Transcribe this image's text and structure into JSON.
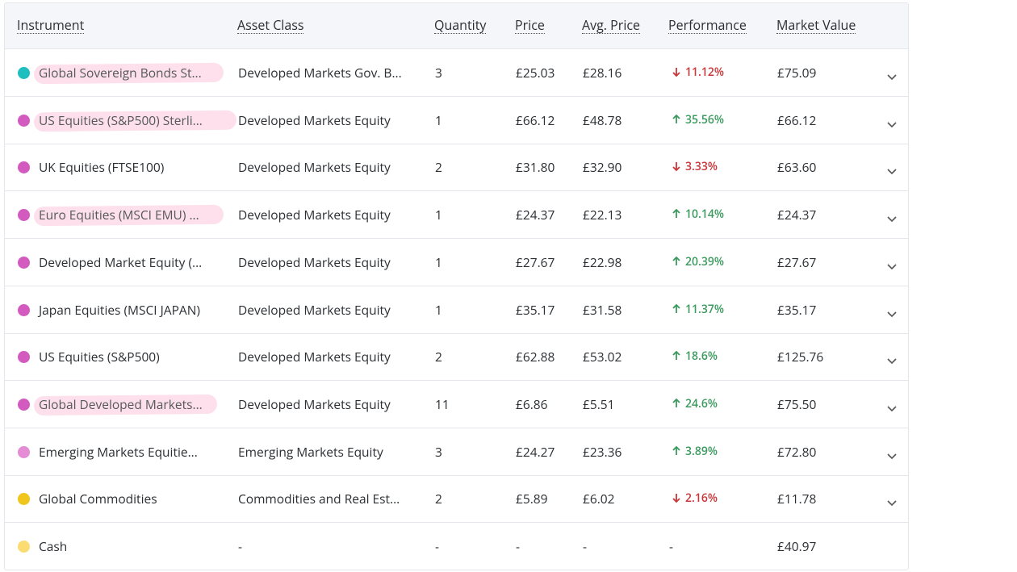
{
  "table": {
    "columns": [
      "Instrument",
      "Asset Class",
      "Quantity",
      "Price",
      "Avg. Price",
      "Performance",
      "Market Value"
    ],
    "rows": [
      {
        "instrument": "Global Sovereign Bonds St...",
        "asset_class": "Developed Markets Gov. B...",
        "quantity": "3",
        "price": "£25.03",
        "avg_price": "£28.16",
        "performance": "11.12%",
        "trend": "down",
        "market_value": "£75.09",
        "color": "#1fbfbf",
        "highlight": true
      },
      {
        "instrument": "US Equities (S&P500) Sterli...",
        "asset_class": "Developed Markets Equity",
        "quantity": "1",
        "price": "£66.12",
        "avg_price": "£48.78",
        "performance": "35.56%",
        "trend": "up",
        "market_value": "£66.12",
        "color": "#d35bbf",
        "highlight": true
      },
      {
        "instrument": "UK Equities (FTSE100)",
        "asset_class": "Developed Markets Equity",
        "quantity": "2",
        "price": "£31.80",
        "avg_price": "£32.90",
        "performance": "3.33%",
        "trend": "down",
        "market_value": "£63.60",
        "color": "#d35bbf",
        "highlight": false
      },
      {
        "instrument": "Euro Equities (MSCI EMU) ...",
        "asset_class": "Developed Markets Equity",
        "quantity": "1",
        "price": "£24.37",
        "avg_price": "£22.13",
        "performance": "10.14%",
        "trend": "up",
        "market_value": "£24.37",
        "color": "#d35bbf",
        "highlight": true
      },
      {
        "instrument": "Developed Market Equity (...",
        "asset_class": "Developed Markets Equity",
        "quantity": "1",
        "price": "£27.67",
        "avg_price": "£22.98",
        "performance": "20.39%",
        "trend": "up",
        "market_value": "£27.67",
        "color": "#d35bbf",
        "highlight": false
      },
      {
        "instrument": "Japan Equities (MSCI JAPAN)",
        "asset_class": "Developed Markets Equity",
        "quantity": "1",
        "price": "£35.17",
        "avg_price": "£31.58",
        "performance": "11.37%",
        "trend": "up",
        "market_value": "£35.17",
        "color": "#d35bbf",
        "highlight": false
      },
      {
        "instrument": "US Equities (S&P500)",
        "asset_class": "Developed Markets Equity",
        "quantity": "2",
        "price": "£62.88",
        "avg_price": "£53.02",
        "performance": "18.6%",
        "trend": "up",
        "market_value": "£125.76",
        "color": "#d35bbf",
        "highlight": false
      },
      {
        "instrument": "Global Developed Markets...",
        "asset_class": "Developed Markets Equity",
        "quantity": "11",
        "price": "£6.86",
        "avg_price": "£5.51",
        "performance": "24.6%",
        "trend": "up",
        "market_value": "£75.50",
        "color": "#d35bbf",
        "highlight": true
      },
      {
        "instrument": "Emerging Markets Equitie...",
        "asset_class": "Emerging Markets Equity",
        "quantity": "3",
        "price": "£24.27",
        "avg_price": "£23.36",
        "performance": "3.89%",
        "trend": "up",
        "market_value": "£72.80",
        "color": "#e48cd4",
        "highlight": false
      },
      {
        "instrument": "Global Commodities",
        "asset_class": "Commodities and Real Est...",
        "quantity": "2",
        "price": "£5.89",
        "avg_price": "£6.02",
        "performance": "2.16%",
        "trend": "down",
        "market_value": "£11.78",
        "color": "#f0c51c",
        "highlight": false
      },
      {
        "instrument": "Cash",
        "asset_class": "-",
        "quantity": "-",
        "price": "-",
        "avg_price": "-",
        "performance": "-",
        "market_value": "£40.97",
        "color": "#fbdc72",
        "highlight": false
      }
    ]
  }
}
